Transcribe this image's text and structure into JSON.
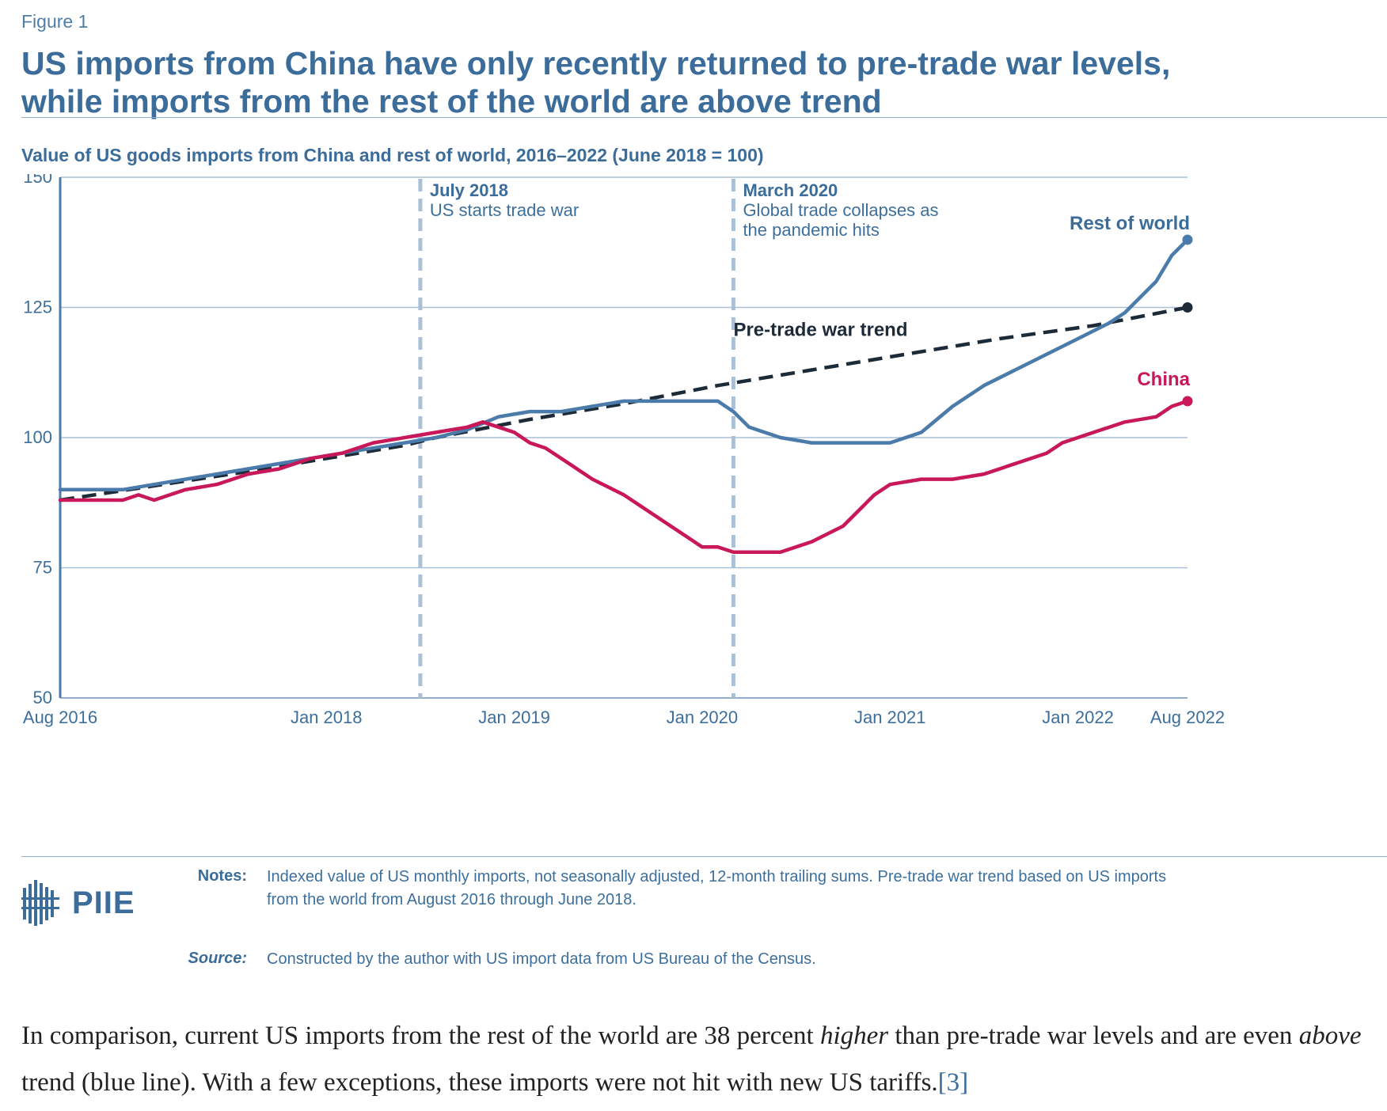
{
  "figure_label": "Figure 1",
  "title_line1": "US imports from China have only recently returned to pre-trade war levels,",
  "title_line2": "while imports from the rest of the world are above trend",
  "subtitle": "Value of US goods imports from China and rest of world, 2016–2022 (June 2018 = 100)",
  "colors": {
    "accent": "#3b6c9a",
    "rest_of_world": "#4a7baa",
    "china": "#c8185a",
    "trend": "#1d2b38",
    "grid": "#a9c0d6",
    "vline": "#a9c0d6"
  },
  "chart_data": {
    "type": "line",
    "title": "Value of US goods imports from China and rest of world, 2016–2022 (June 2018 = 100)",
    "xlabel": "",
    "ylabel": "",
    "x_range": [
      "2016-08",
      "2022-08"
    ],
    "ylim": [
      50,
      150
    ],
    "y_ticks": [
      50,
      75,
      100,
      125,
      150
    ],
    "x_ticks": [
      {
        "label": "Aug 2016",
        "x": 0
      },
      {
        "label": "Jan 2018",
        "x": 17
      },
      {
        "label": "Jan 2019",
        "x": 29
      },
      {
        "label": "Jan 2020",
        "x": 41
      },
      {
        "label": "Jan 2021",
        "x": 53
      },
      {
        "label": "Jan 2022",
        "x": 65
      },
      {
        "label": "Aug 2022",
        "x": 72
      }
    ],
    "x_unit": "months since Aug 2016",
    "grid": true,
    "series": [
      {
        "name": "Rest of world",
        "label": "Rest of world",
        "style": "solid",
        "points": [
          [
            0,
            90
          ],
          [
            4,
            90
          ],
          [
            6,
            91
          ],
          [
            8,
            92
          ],
          [
            10,
            93
          ],
          [
            12,
            94
          ],
          [
            14,
            95
          ],
          [
            16,
            96
          ],
          [
            18,
            97
          ],
          [
            20,
            98
          ],
          [
            22,
            99
          ],
          [
            24,
            100
          ],
          [
            26,
            101.5
          ],
          [
            28,
            104
          ],
          [
            30,
            105
          ],
          [
            32,
            105
          ],
          [
            34,
            106
          ],
          [
            36,
            107
          ],
          [
            38,
            107
          ],
          [
            39,
            107
          ],
          [
            40,
            107
          ],
          [
            42,
            107
          ],
          [
            43,
            105
          ],
          [
            44,
            102
          ],
          [
            46,
            100
          ],
          [
            48,
            99
          ],
          [
            50,
            99
          ],
          [
            53,
            99
          ],
          [
            55,
            101
          ],
          [
            57,
            106
          ],
          [
            59,
            110
          ],
          [
            61,
            113
          ],
          [
            63,
            116
          ],
          [
            65,
            119
          ],
          [
            67,
            122
          ],
          [
            68,
            124
          ],
          [
            69,
            127
          ],
          [
            70,
            130
          ],
          [
            71,
            135
          ],
          [
            72,
            138
          ]
        ],
        "end_marker": true
      },
      {
        "name": "China",
        "label": "China",
        "style": "solid",
        "points": [
          [
            0,
            88
          ],
          [
            4,
            88
          ],
          [
            5,
            89
          ],
          [
            6,
            88
          ],
          [
            8,
            90
          ],
          [
            10,
            91
          ],
          [
            12,
            93
          ],
          [
            14,
            94
          ],
          [
            16,
            96
          ],
          [
            18,
            97
          ],
          [
            20,
            99
          ],
          [
            22,
            100
          ],
          [
            24,
            101
          ],
          [
            26,
            102
          ],
          [
            27,
            103
          ],
          [
            28,
            102
          ],
          [
            29,
            101
          ],
          [
            30,
            99
          ],
          [
            31,
            98
          ],
          [
            32,
            96
          ],
          [
            34,
            92
          ],
          [
            36,
            89
          ],
          [
            38,
            85
          ],
          [
            40,
            81
          ],
          [
            41,
            79
          ],
          [
            42,
            79
          ],
          [
            43,
            78
          ],
          [
            44,
            78
          ],
          [
            46,
            78
          ],
          [
            48,
            80
          ],
          [
            50,
            83
          ],
          [
            51,
            86
          ],
          [
            52,
            89
          ],
          [
            53,
            91
          ],
          [
            55,
            92
          ],
          [
            57,
            92
          ],
          [
            59,
            93
          ],
          [
            61,
            95
          ],
          [
            63,
            97
          ],
          [
            64,
            99
          ],
          [
            66,
            101
          ],
          [
            68,
            103
          ],
          [
            70,
            104
          ],
          [
            71,
            106
          ],
          [
            72,
            107
          ]
        ],
        "end_marker": true
      },
      {
        "name": "Pre-trade war trend",
        "label": "Pre-trade war trend",
        "style": "dashed",
        "points": [
          [
            0,
            88
          ],
          [
            12,
            93.5
          ],
          [
            22,
            98.5
          ],
          [
            24,
            100
          ],
          [
            30,
            103.5
          ],
          [
            36,
            106.5
          ],
          [
            42,
            110
          ],
          [
            48,
            113
          ],
          [
            54,
            116
          ],
          [
            60,
            119
          ],
          [
            66,
            121.5
          ],
          [
            72,
            125
          ]
        ],
        "end_marker": true
      }
    ],
    "annotations": [
      {
        "x": 23,
        "heading": "July 2018",
        "lines": [
          "US starts trade war"
        ]
      },
      {
        "x": 43,
        "heading": "March 2020",
        "lines": [
          "Global trade collapses as",
          "the pandemic hits"
        ]
      }
    ]
  },
  "logo": {
    "text": "PIIE",
    "icon": "piie-building-icon"
  },
  "notes": {
    "label": "Notes:",
    "line1": "Indexed value of US monthly imports, not seasonally adjusted, 12-month trailing sums. Pre-trade war trend based on US imports",
    "line2": "from the world from August 2016 through June 2018."
  },
  "source": {
    "label": "Source:",
    "text": "Constructed by the author with US import data from US Bureau of the Census."
  },
  "body": {
    "p1": "In comparison, current US imports from the rest of the world are 38 percent ",
    "em1": "higher",
    "p2": " than pre-trade war levels and are even ",
    "em2": "above",
    "p3": " trend (blue line). With a few exceptions, these imports were not hit with new US tariffs.",
    "footnote": "[3]"
  }
}
